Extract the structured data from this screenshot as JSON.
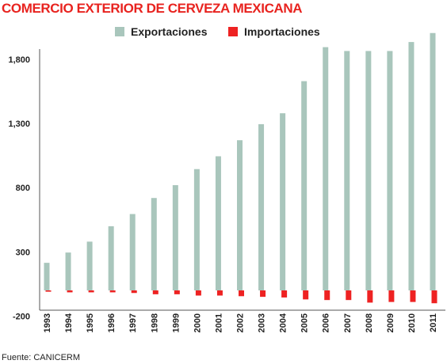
{
  "title": "COMERCIO EXTERIOR DE CERVEZA MEXICANA",
  "source": "Fuente: CANICERM",
  "colors": {
    "exports": "#a9c6bc",
    "imports": "#ee2222",
    "title": "#e8231f"
  },
  "chart_data": {
    "type": "bar",
    "title": "COMERCIO EXTERIOR DE CERVEZA MEXICANA",
    "categories": [
      "1993",
      "1994",
      "1995",
      "1996",
      "1997",
      "1998",
      "1999",
      "2000",
      "2001",
      "2002",
      "2003",
      "2004",
      "2005",
      "2006",
      "2007",
      "2008",
      "2009",
      "2010",
      "2011"
    ],
    "series": [
      {
        "name": "Exportaciones",
        "values": [
          215,
          295,
          380,
          500,
          595,
          720,
          820,
          945,
          1045,
          1170,
          1295,
          1380,
          1630,
          1895,
          1865,
          1865,
          1865,
          1935,
          2005
        ]
      },
      {
        "name": "Importaciones",
        "values": [
          -10,
          -15,
          -15,
          -15,
          -20,
          -30,
          -30,
          -40,
          -40,
          -45,
          -50,
          -55,
          -70,
          -75,
          -75,
          -95,
          -90,
          -90,
          -100
        ]
      }
    ],
    "yticks": [
      "1,800",
      "1,300",
      "800",
      "300",
      "-200"
    ],
    "ytick_values": [
      1800,
      1300,
      800,
      300,
      -200
    ],
    "ylim": [
      -200,
      2000
    ],
    "xlabel": "",
    "ylabel": "",
    "grid": false,
    "legend": "top-center"
  }
}
